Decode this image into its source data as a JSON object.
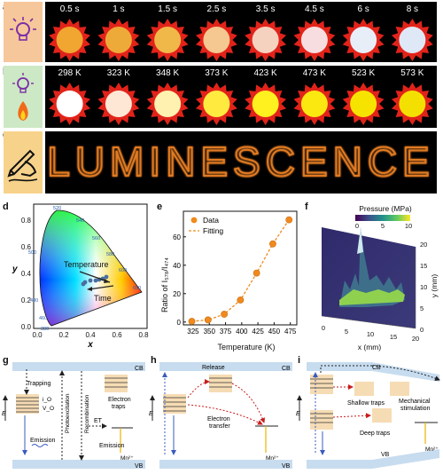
{
  "panels": {
    "a": {
      "label": "a",
      "times": [
        "0.5 s",
        "1 s",
        "1.5 s",
        "2.5 s",
        "3.5 s",
        "4.5 s",
        "6 s",
        "8 s"
      ],
      "core_colors": [
        "#f0a630",
        "#eeaa38",
        "#f0b848",
        "#f4c890",
        "#f5d2c0",
        "#f7dde0",
        "#e8eef8",
        "#dfe8f7"
      ]
    },
    "b": {
      "label": "b",
      "temps": [
        "298 K",
        "323 K",
        "348 K",
        "373 K",
        "423 K",
        "473 K",
        "523 K",
        "573 K"
      ],
      "core_colors": [
        "#ffffff",
        "#ffe7d6",
        "#fff2b0",
        "#ffeb40",
        "#fff020",
        "#fbe810",
        "#f6e400",
        "#f4e000"
      ]
    },
    "c": {
      "label": "c",
      "word": "LUMINESCENCE"
    },
    "d": {
      "label": "d",
      "xlabel": "x",
      "ylabel": "y",
      "wavelengths": [
        "520",
        "540",
        "560",
        "580",
        "600",
        "650",
        "500",
        "480",
        "460",
        "380"
      ],
      "annotations": [
        "Temperature",
        "Time"
      ],
      "xticks": [
        "0.0",
        "0.2",
        "0.4",
        "0.6",
        "0.8"
      ],
      "yticks": [
        "0.0",
        "0.2",
        "0.4",
        "0.6",
        "0.8"
      ]
    },
    "f": {
      "label": "f",
      "cbar_title": "Pressure (MPa)",
      "cbar_ticks": [
        "0",
        "5",
        "10"
      ],
      "xlabel": "x (mm)",
      "ylabel": "y (mm)",
      "xticks": [
        "0",
        "5",
        "10",
        "15",
        "20"
      ],
      "yticks": [
        "0",
        "5",
        "10",
        "15",
        "20"
      ]
    },
    "g": {
      "label": "g",
      "cb": "CB",
      "vb": "VB",
      "e": "E",
      "io": "i_O",
      "vo": "V_O",
      "texts": [
        "Trapping",
        "Photoexcitation",
        "Recombination",
        "Emission",
        "ET",
        "Emission",
        "Electron",
        "traps",
        "Mn²⁺"
      ]
    },
    "h": {
      "label": "h",
      "cb": "CB",
      "vb": "VB",
      "e": "E",
      "texts": [
        "Release",
        "Electron",
        "transfer",
        "Mn²⁺"
      ]
    },
    "i": {
      "label": "i",
      "cb": "CB",
      "vb": "VB",
      "e": "E",
      "texts": [
        "Shallow traps",
        "Mechanical",
        "stimulation",
        "Deep traps",
        "Mn²⁺"
      ]
    }
  },
  "chart_data": {
    "type": "scatter",
    "title": "e",
    "xlabel": "Temperature (K)",
    "ylabel": "Ratio of I₅₇₈/I₄₇₄",
    "xlim": [
      310,
      485
    ],
    "ylim": [
      -2,
      78
    ],
    "xticks": [
      325,
      350,
      375,
      400,
      425,
      450,
      475
    ],
    "yticks": [
      0,
      20,
      40,
      60
    ],
    "legend_position": "top-left",
    "series": [
      {
        "name": "Data",
        "kind": "points",
        "color": "#f08a1c",
        "x": [
          323,
          348,
          373,
          398,
          423,
          448,
          473
        ],
        "y": [
          0.5,
          1.5,
          5.5,
          15.5,
          34.5,
          55,
          72
        ]
      },
      {
        "name": "Fitting",
        "kind": "dashed-line",
        "color": "#f08a1c",
        "x": [
          323,
          348,
          373,
          398,
          423,
          448,
          473
        ],
        "y": [
          0.5,
          1.5,
          5.5,
          15.5,
          34.5,
          55,
          72
        ]
      }
    ]
  }
}
